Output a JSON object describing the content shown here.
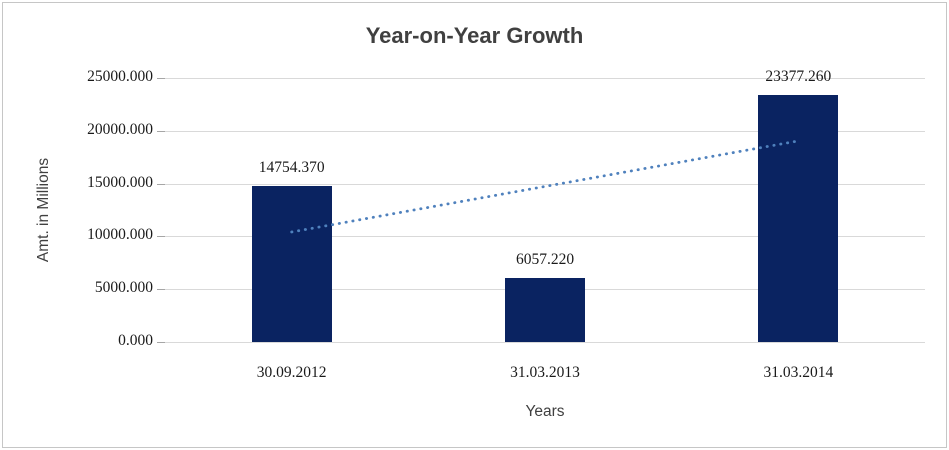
{
  "page": {
    "background": "#ffffff",
    "frame_border_color": "#c6c6c6"
  },
  "chart_data": {
    "type": "bar",
    "title": "Year-on-Year Growth",
    "xlabel": "Years",
    "ylabel": "Amt. in Millions",
    "categories": [
      "30.09.2012",
      "31.03.2013",
      "31.03.2014"
    ],
    "values": [
      14754.37,
      6057.22,
      23377.26
    ],
    "data_labels": [
      "14754.370",
      "6057.220",
      "23377.260"
    ],
    "ylim": [
      0,
      25000
    ],
    "ytick_step": 5000,
    "ytick_labels": [
      "0.000",
      "5000.000",
      "10000.000",
      "15000.000",
      "20000.000",
      "25000.000"
    ],
    "grid": "horizontal",
    "legend": "none",
    "colors": {
      "bar": "#0a2361",
      "trendline": "#4f81bd",
      "gridline": "#d9d9d9",
      "tick_mark": "#a6a6a6",
      "title_text": "#404040",
      "axis_title_text": "#404040",
      "label_text": "#1a1a1a"
    },
    "trendline": {
      "type": "linear",
      "style": "dotted",
      "start_value": 10418,
      "end_value": 19041
    }
  }
}
